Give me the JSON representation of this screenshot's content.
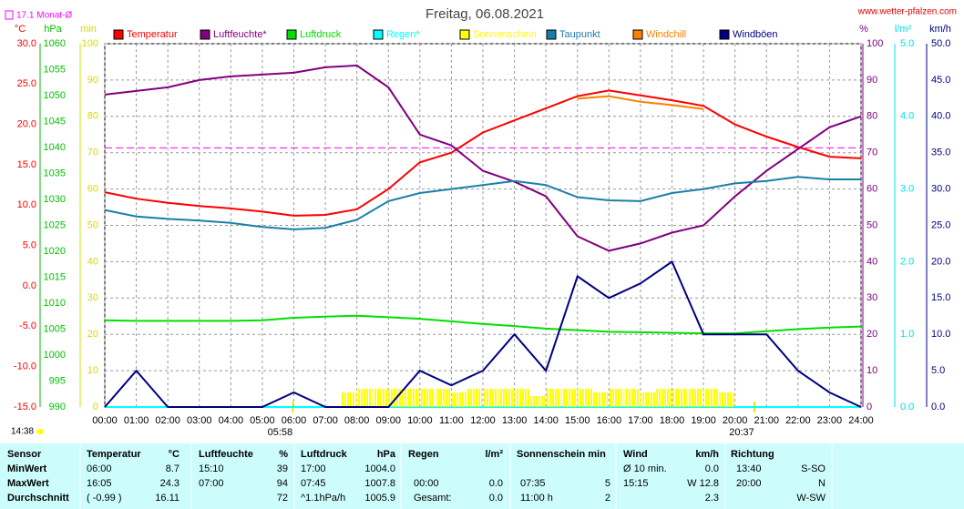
{
  "chart_data": {
    "type": "line",
    "title": "Freitag, 06.08.2021",
    "site": "www.wetter-pfalzen.com",
    "timestamp": "14:38",
    "monthly_avg": {
      "value": 17.1,
      "label": "17.1 Monat-Ø",
      "color": "#ff00ff",
      "axis": 0
    },
    "sunrise": {
      "value": 5.9667,
      "label": "05:58"
    },
    "sunset": {
      "value": 20.6167,
      "label": "20:37"
    },
    "grid": true,
    "xlim": [
      0,
      24
    ],
    "xticks": [
      {
        "value": 0,
        "label": "00:00"
      },
      {
        "value": 1,
        "label": "01:00"
      },
      {
        "value": 2,
        "label": "02:00"
      },
      {
        "value": 3,
        "label": "03:00"
      },
      {
        "value": 4,
        "label": "04:00"
      },
      {
        "value": 5,
        "label": "05:00"
      },
      {
        "value": 6,
        "label": "06:00"
      },
      {
        "value": 7,
        "label": "07:00"
      },
      {
        "value": 8,
        "label": "08:00"
      },
      {
        "value": 9,
        "label": "09:00"
      },
      {
        "value": 10,
        "label": "10:00"
      },
      {
        "value": 11,
        "label": "11:00"
      },
      {
        "value": 12,
        "label": "12:00"
      },
      {
        "value": 13,
        "label": "13:00"
      },
      {
        "value": 14,
        "label": "14:00"
      },
      {
        "value": 15,
        "label": "15:00"
      },
      {
        "value": 16,
        "label": "16:00"
      },
      {
        "value": 17,
        "label": "17:00"
      },
      {
        "value": 18,
        "label": "18:00"
      },
      {
        "value": 19,
        "label": "19:00"
      },
      {
        "value": 20,
        "label": "20:00"
      },
      {
        "value": 21,
        "label": "21:00"
      },
      {
        "value": 22,
        "label": "22:00"
      },
      {
        "value": 23,
        "label": "23:00"
      },
      {
        "value": 24,
        "label": "24:00"
      }
    ],
    "axes": [
      {
        "unit": "°C",
        "color": "#ff0000",
        "lim": [
          -15,
          30
        ],
        "ticks": [
          {
            "value": -15,
            "label": "-15.0"
          },
          {
            "value": -10,
            "label": "-10.0"
          },
          {
            "value": -5,
            "label": "-5.0"
          },
          {
            "value": 0,
            "label": "0.0"
          },
          {
            "value": 5,
            "label": "5.0"
          },
          {
            "value": 10,
            "label": "10.0"
          },
          {
            "value": 15,
            "label": "15.0"
          },
          {
            "value": 20,
            "label": "20.0"
          },
          {
            "value": 25,
            "label": "25.0"
          },
          {
            "value": 30,
            "label": "30.0"
          }
        ]
      },
      {
        "unit": "hPa",
        "color": "#00c000",
        "lim": [
          990,
          1060
        ],
        "ticks": [
          990,
          995,
          1000,
          1005,
          1010,
          1015,
          1020,
          1025,
          1030,
          1035,
          1040,
          1045,
          1050,
          1055,
          1060
        ]
      },
      {
        "unit": "min",
        "color": "#d8d800",
        "lim": [
          0,
          100
        ],
        "ticks": [
          0,
          10,
          20,
          30,
          40,
          50,
          60,
          70,
          80,
          90,
          100
        ]
      },
      {
        "unit": "%",
        "color": "#800080",
        "lim": [
          0,
          100
        ],
        "ticks": [
          0,
          10,
          20,
          30,
          40,
          50,
          60,
          70,
          80,
          90,
          100
        ]
      },
      {
        "unit": "l/m²",
        "color": "#00e0e0",
        "lim": [
          0,
          5
        ],
        "ticks": [
          {
            "value": 0,
            "label": "0.0"
          },
          {
            "value": 1,
            "label": "1.0"
          },
          {
            "value": 2,
            "label": "2.0"
          },
          {
            "value": 3,
            "label": "3.0"
          },
          {
            "value": 4,
            "label": "4.0"
          },
          {
            "value": 5,
            "label": "5.0"
          }
        ]
      },
      {
        "unit": "km/h",
        "color": "#000080",
        "lim": [
          0,
          50
        ],
        "ticks": [
          {
            "value": 0,
            "label": "0.0"
          },
          {
            "value": 5,
            "label": "5.0"
          },
          {
            "value": 10,
            "label": "10.0"
          },
          {
            "value": 15,
            "label": "15.0"
          },
          {
            "value": 20,
            "label": "20.0"
          },
          {
            "value": 25,
            "label": "25.0"
          },
          {
            "value": 30,
            "label": "30.0"
          },
          {
            "value": 35,
            "label": "35.0"
          },
          {
            "value": 40,
            "label": "40.0"
          },
          {
            "value": 45,
            "label": "45.0"
          },
          {
            "value": 50,
            "label": "50.0"
          }
        ]
      }
    ],
    "x": [
      0,
      1,
      2,
      3,
      4,
      5,
      6,
      7,
      8,
      9,
      10,
      11,
      12,
      13,
      14,
      15,
      16,
      17,
      18,
      19,
      20,
      21,
      22,
      23,
      24
    ],
    "series": [
      {
        "name": "Temperatur",
        "color": "#ff0000",
        "axis": 0,
        "values": [
          11.6,
          10.8,
          10.3,
          9.9,
          9.6,
          9.2,
          8.7,
          8.8,
          9.5,
          12,
          15.3,
          16.5,
          19,
          20.5,
          22,
          23.5,
          24.2,
          23.6,
          23,
          22.3,
          20,
          18.5,
          17.2,
          16,
          15.8
        ]
      },
      {
        "name": "Luftfeuchte*",
        "color": "#800080",
        "axis": 3,
        "values": [
          86,
          87,
          88,
          90,
          91,
          91.5,
          92,
          93.5,
          94,
          88,
          75,
          72,
          65,
          62,
          58,
          47,
          43,
          45,
          48,
          50,
          58,
          65,
          71,
          77,
          80
        ]
      },
      {
        "name": "Luftdruck",
        "color": "#00e000",
        "axis": 1,
        "values": [
          1006.7,
          1006.6,
          1006.6,
          1006.6,
          1006.6,
          1006.7,
          1007.2,
          1007.4,
          1007.6,
          1007.3,
          1007.0,
          1006.5,
          1006.0,
          1005.6,
          1005.1,
          1004.8,
          1004.5,
          1004.4,
          1004.3,
          1004.2,
          1004.2,
          1004.6,
          1005.0,
          1005.3,
          1005.5
        ]
      },
      {
        "name": "Regen*",
        "color": "#00ffff",
        "axis": 4,
        "values": [
          0,
          0,
          0,
          0,
          0,
          0,
          0,
          0,
          0,
          0,
          0,
          0,
          0,
          0,
          0,
          0,
          0,
          0,
          0,
          0,
          0,
          0,
          0,
          0,
          0
        ]
      },
      {
        "name": "Sonnenschein",
        "color": "#ffff00",
        "axis": 2,
        "bars": true,
        "x": [
          7.5,
          8,
          8.5,
          9,
          9.5,
          10,
          10.5,
          11,
          11.5,
          12,
          12.5,
          13,
          13.5,
          14,
          14.5,
          15,
          15.5,
          16,
          16.5,
          17,
          17.5,
          18,
          18.5,
          19,
          19.5
        ],
        "values": [
          4,
          5,
          5,
          5,
          5,
          5,
          5,
          4,
          5,
          5,
          5,
          5,
          3,
          5,
          5,
          5,
          4,
          5,
          5,
          4,
          5,
          5,
          5,
          5,
          4
        ]
      },
      {
        "name": "Taupunkt",
        "color": "#1a7fa8",
        "axis": 0,
        "values": [
          9.4,
          8.6,
          8.3,
          8.1,
          7.8,
          7.3,
          7.0,
          7.2,
          8.2,
          10.5,
          11.5,
          12,
          12.5,
          13,
          12.5,
          11,
          10.6,
          10.5,
          11.5,
          12,
          12.7,
          13,
          13.5,
          13.2,
          13.2
        ]
      },
      {
        "name": "Windchill",
        "color": "#ff8000",
        "axis": 0,
        "values": [
          null,
          null,
          null,
          null,
          null,
          null,
          null,
          null,
          null,
          null,
          null,
          null,
          null,
          null,
          null,
          23.2,
          23.5,
          22.8,
          22.4,
          21.9,
          null,
          null,
          null,
          null,
          null
        ]
      },
      {
        "name": "Windböen",
        "color": "#000080",
        "axis": 5,
        "values": [
          0,
          5,
          0,
          0,
          0,
          0,
          2,
          0,
          0,
          0,
          5,
          3,
          5,
          10,
          5,
          18,
          15,
          17,
          20,
          10,
          10,
          10,
          5,
          2,
          0
        ]
      }
    ]
  },
  "table": {
    "header": [
      "Sensor",
      "Temperatur",
      "°C",
      "Luftfeuchte",
      "%",
      "Luftdruck",
      "hPa",
      "Regen",
      "l/m²",
      "Sonnenschein min",
      "Wind",
      "km/h",
      "Richtung"
    ],
    "rows": [
      {
        "label": "MinWert",
        "cells": [
          "06:00",
          "8.7",
          "15:10",
          "39",
          "17:00",
          "1004.0",
          null,
          null,
          null,
          null,
          "Ø 10 min.",
          "0.0",
          "13:40",
          "S-SO"
        ]
      },
      {
        "label": "MaxWert",
        "cells": [
          "16:05",
          "24.3",
          "07:00",
          "94",
          "07:45",
          "1007.8",
          "00:00",
          "0.0",
          "07:35",
          "5",
          "15:15",
          "W 12.8",
          "20:00",
          "N"
        ]
      },
      {
        "label": "Durchschnitt",
        "cells": [
          "( -0.99 )",
          "16.11",
          null,
          "72",
          "^1.1hPa/h",
          "1005.9",
          "Gesamt:",
          "0.0",
          "11:00 h",
          "2",
          null,
          "2.3",
          null,
          "W-SW"
        ]
      }
    ]
  }
}
